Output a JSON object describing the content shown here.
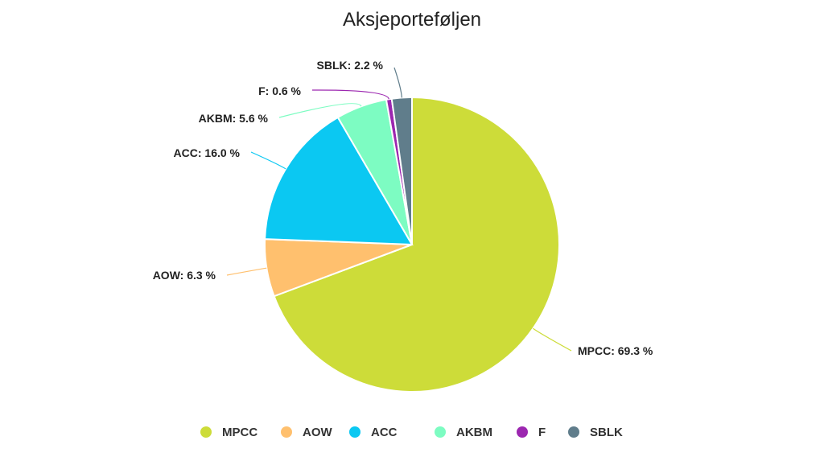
{
  "chart_data": {
    "type": "pie",
    "title": "Aksjeporteføljen",
    "slices": [
      {
        "name": "MPCC",
        "value": 69.3,
        "label": "MPCC: 69.3 %",
        "color": "#cddc39"
      },
      {
        "name": "AOW",
        "value": 6.3,
        "label": "AOW: 6.3 %",
        "color": "#ffc06e"
      },
      {
        "name": "ACC",
        "value": 16.0,
        "label": "ACC: 16.0 %",
        "color": "#0bc8f2"
      },
      {
        "name": "AKBM",
        "value": 5.6,
        "label": "AKBM: 5.6 %",
        "color": "#7dfcc2"
      },
      {
        "name": "F",
        "value": 0.6,
        "label": "F: 0.6 %",
        "color": "#9c27b0"
      },
      {
        "name": "SBLK",
        "value": 2.2,
        "label": "SBLK: 2.2 %",
        "color": "#607d8b"
      }
    ],
    "legend_position": "bottom",
    "legend": [
      "MPCC",
      "AOW",
      "ACC",
      "AKBM",
      "F",
      "SBLK"
    ]
  }
}
